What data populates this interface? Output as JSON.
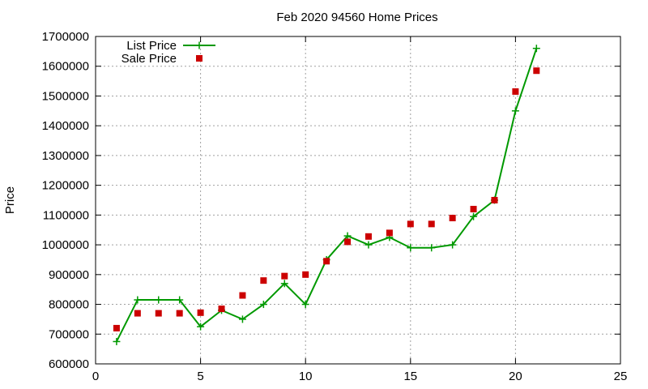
{
  "chart_data": {
    "type": "line",
    "title": "Feb 2020 94560 Home Prices",
    "xlabel": "",
    "ylabel": "Price",
    "xlim": [
      0,
      25
    ],
    "ylim": [
      600000,
      1700000
    ],
    "xticks": [
      "0",
      "5",
      "10",
      "15",
      "20",
      "25"
    ],
    "yticks": [
      "600000",
      "700000",
      "800000",
      "900000",
      "1000000",
      "1100000",
      "1200000",
      "1300000",
      "1400000",
      "1500000",
      "1600000",
      "1700000"
    ],
    "grid": true,
    "legend_position": "top-left",
    "series": [
      {
        "name": "List Price",
        "style": "line+cross",
        "color": "#009900",
        "x": [
          1,
          2,
          3,
          4,
          5,
          6,
          7,
          8,
          9,
          10,
          11,
          12,
          13,
          14,
          15,
          16,
          17,
          18,
          19,
          20,
          21
        ],
        "y": [
          675000,
          815000,
          815000,
          815000,
          725000,
          780000,
          750000,
          800000,
          870000,
          800000,
          950000,
          1030000,
          1000000,
          1025000,
          990000,
          990000,
          1000000,
          1095000,
          1150000,
          1450000,
          1660000
        ]
      },
      {
        "name": "Sale Price",
        "style": "square-markers",
        "color": "#cc0000",
        "x": [
          1,
          2,
          3,
          4,
          5,
          6,
          7,
          8,
          9,
          10,
          11,
          12,
          13,
          14,
          15,
          16,
          17,
          18,
          19,
          20,
          21
        ],
        "y": [
          720000,
          770000,
          770000,
          770000,
          772000,
          785000,
          830000,
          880000,
          895000,
          900000,
          945000,
          1010000,
          1028000,
          1040000,
          1070000,
          1070000,
          1090000,
          1120000,
          1150000,
          1515000,
          1585000
        ]
      }
    ]
  }
}
